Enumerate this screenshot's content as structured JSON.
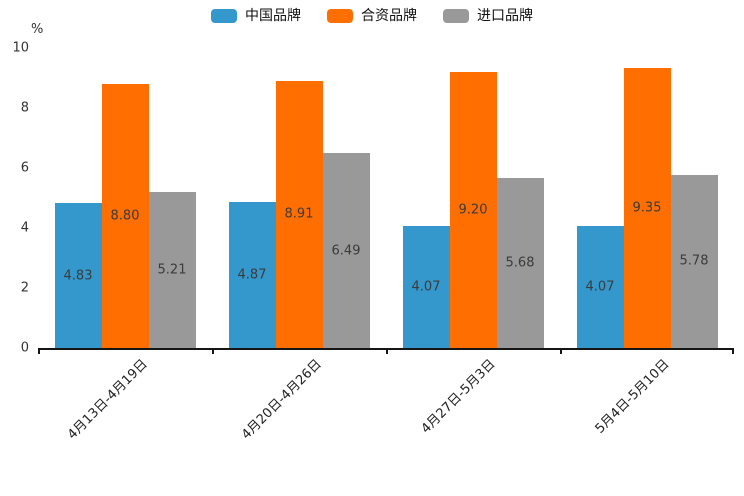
{
  "chart_data": {
    "type": "bar",
    "title": "",
    "unit_label": "%",
    "categories": [
      "4月13日-4月19日",
      "4月20日-4月26日",
      "4月27日-5月3日",
      "5月4日-5月10日"
    ],
    "series": [
      {
        "name": "中国品牌",
        "color": "#3498cc",
        "values": [
          4.83,
          4.87,
          4.07,
          4.07
        ],
        "labels": [
          "4.83",
          "4.87",
          "4.07",
          "4.07"
        ]
      },
      {
        "name": "合资品牌",
        "color": "#ff6e00",
        "values": [
          8.8,
          8.91,
          9.2,
          9.35
        ],
        "labels": [
          "8.80",
          "8.91",
          "9.20",
          "9.35"
        ]
      },
      {
        "name": "进口品牌",
        "color": "#999999",
        "values": [
          5.21,
          6.49,
          5.68,
          5.78
        ],
        "labels": [
          "5.21",
          "6.49",
          "5.68",
          "5.78"
        ]
      }
    ],
    "ylim": [
      0,
      10
    ],
    "yticks": [
      0,
      2,
      4,
      6,
      8,
      10
    ],
    "legend_position": "top",
    "grid": false,
    "value_label_position": "inside-center",
    "xlabel_rotation_deg": 45,
    "axis_color": "#151515",
    "value_label_color": "#3b3b3b"
  }
}
